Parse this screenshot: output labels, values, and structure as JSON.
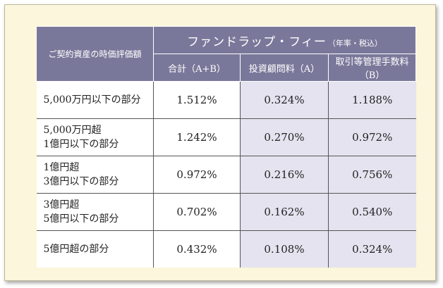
{
  "table": {
    "corner_header": "ご契約資産の時価評価額",
    "group_header": "ファンドラップ・フィー",
    "group_note": "（年率・税込）",
    "sub_headers": [
      "合計（A+B）",
      "投資顧問料（A）",
      "取引等管理手数料（B）"
    ],
    "rows": [
      {
        "label_line1": "5,000万円以下の部分",
        "label_line2": "",
        "total": "1.512%",
        "a": "0.324%",
        "b": "1.188%"
      },
      {
        "label_line1": "5,000万円超",
        "label_line2": "1億円以下の部分",
        "total": "1.242%",
        "a": "0.270%",
        "b": "0.972%"
      },
      {
        "label_line1": "1億円超",
        "label_line2": "3億円以下の部分",
        "total": "0.972%",
        "a": "0.216%",
        "b": "0.756%"
      },
      {
        "label_line1": "3億円超",
        "label_line2": "5億円以下の部分",
        "total": "0.702%",
        "a": "0.162%",
        "b": "0.540%"
      },
      {
        "label_line1": "5億円超の部分",
        "label_line2": "",
        "total": "0.432%",
        "a": "0.108%",
        "b": "0.324%"
      }
    ]
  },
  "colors": {
    "header_bg": "#7a789a",
    "panel_bg": "#fbf6dc",
    "shaded_cell_bg": "#e4e3ef"
  }
}
